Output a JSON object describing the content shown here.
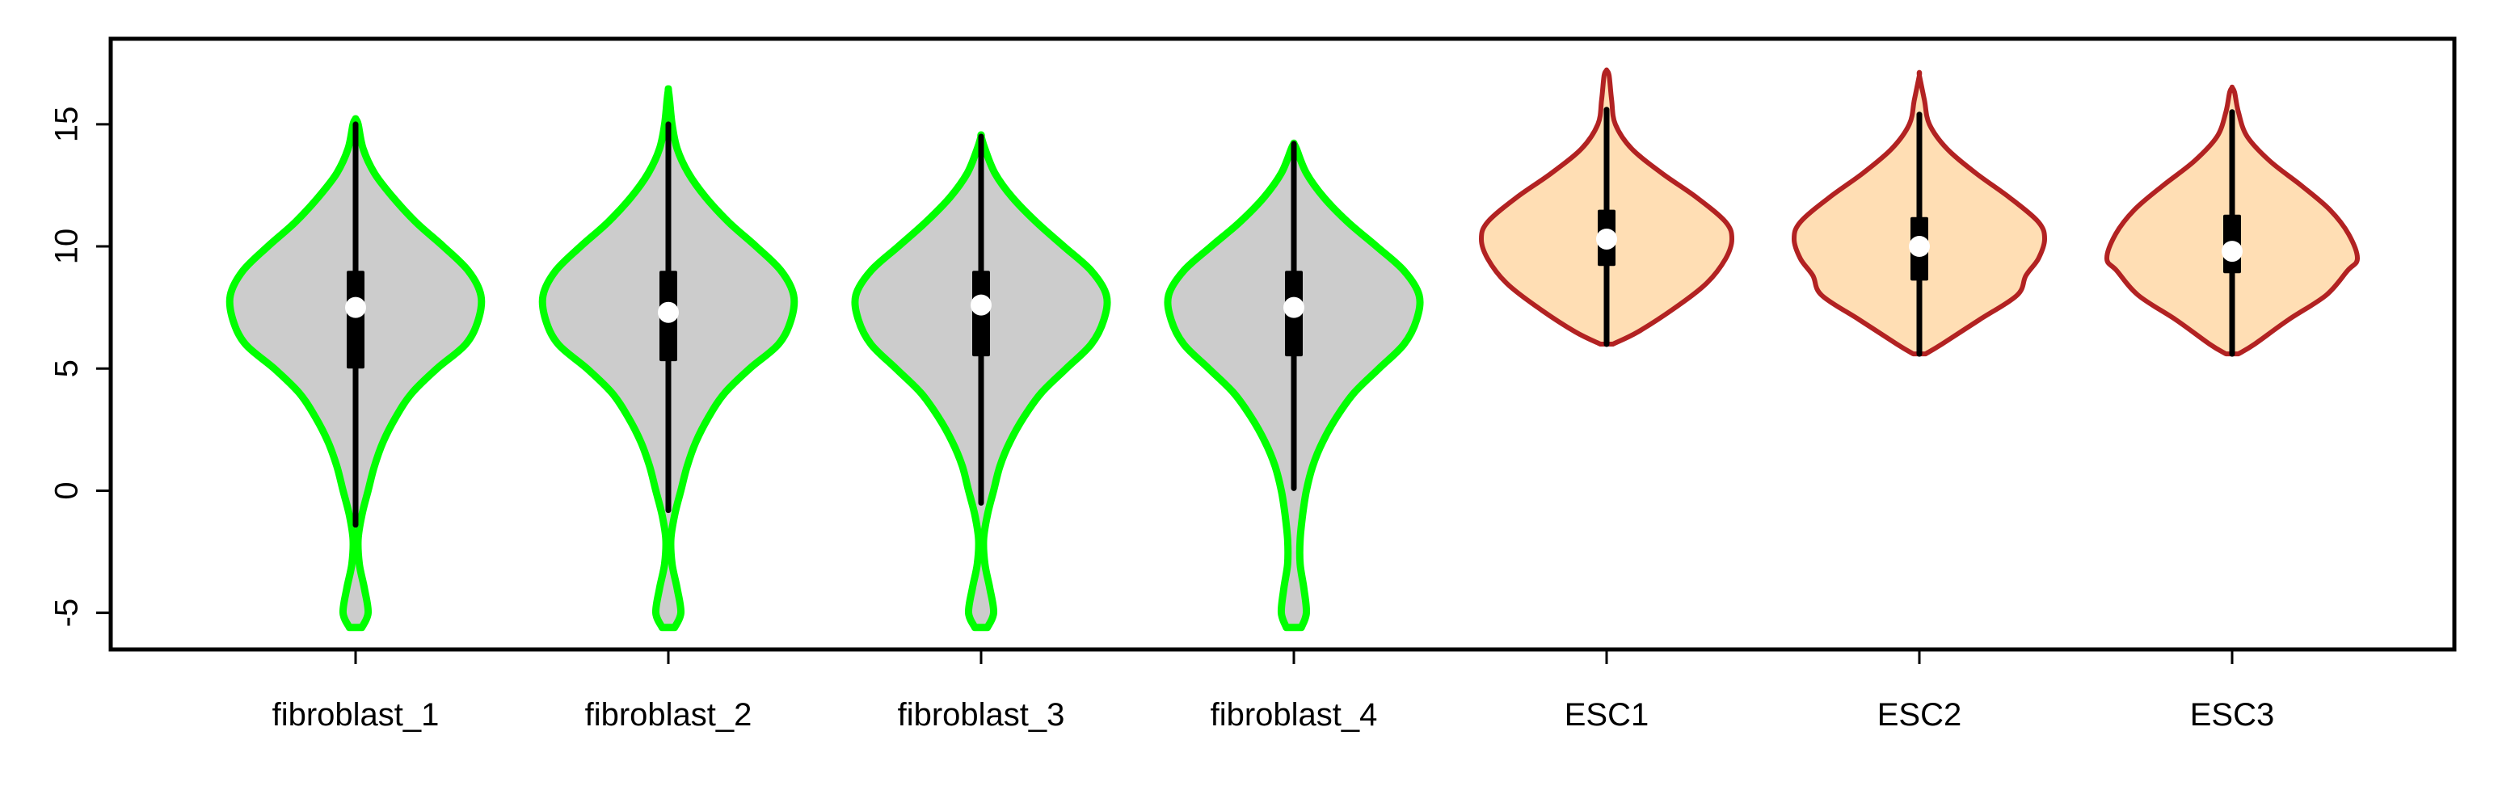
{
  "chart_data": {
    "type": "violin",
    "title": "",
    "xlabel": "",
    "ylabel": "",
    "ylim": [
      -6.5,
      18.5
    ],
    "yticks": [
      -5,
      0,
      5,
      10,
      15
    ],
    "ytick_labels": [
      "-5",
      "0",
      "5",
      "10",
      "15"
    ],
    "grid": false,
    "legend": "none",
    "categories": [
      "fibroblast_1",
      "fibroblast_2",
      "fibroblast_3",
      "fibroblast_4",
      "ESC1",
      "ESC2",
      "ESC3"
    ],
    "groups": {
      "fibroblast": {
        "fill": "#cccccc",
        "stroke": "#00ff00"
      },
      "ESC": {
        "fill": "#ffdeb4",
        "stroke": "#b22222"
      }
    },
    "violins": [
      {
        "name": "fibroblast_1",
        "group": "fibroblast",
        "min": -5.6,
        "max": 15.2,
        "q1": 5.0,
        "median": 7.5,
        "q3": 9.0,
        "whisker_low": -1.4,
        "whisker_high": 15.0,
        "profile": [
          [
            -5.6,
            0.05
          ],
          [
            -5.0,
            0.1
          ],
          [
            -4.0,
            0.07
          ],
          [
            -3.0,
            0.03
          ],
          [
            -2.0,
            0.02
          ],
          [
            -1.0,
            0.05
          ],
          [
            0.0,
            0.1
          ],
          [
            1.0,
            0.15
          ],
          [
            2.0,
            0.22
          ],
          [
            3.0,
            0.32
          ],
          [
            4.0,
            0.45
          ],
          [
            5.0,
            0.65
          ],
          [
            6.0,
            0.88
          ],
          [
            7.0,
            0.98
          ],
          [
            8.0,
            1.0
          ],
          [
            9.0,
            0.9
          ],
          [
            10.0,
            0.7
          ],
          [
            11.0,
            0.48
          ],
          [
            12.0,
            0.3
          ],
          [
            13.0,
            0.15
          ],
          [
            14.0,
            0.06
          ],
          [
            15.0,
            0.02
          ],
          [
            15.2,
            0.0
          ]
        ]
      },
      {
        "name": "fibroblast_2",
        "group": "fibroblast",
        "min": -5.6,
        "max": 16.4,
        "q1": 5.3,
        "median": 7.3,
        "q3": 9.0,
        "whisker_low": -0.8,
        "whisker_high": 15.0,
        "profile": [
          [
            -5.6,
            0.05
          ],
          [
            -5.0,
            0.1
          ],
          [
            -4.0,
            0.07
          ],
          [
            -3.0,
            0.03
          ],
          [
            -2.0,
            0.02
          ],
          [
            -1.0,
            0.05
          ],
          [
            0.0,
            0.1
          ],
          [
            1.0,
            0.15
          ],
          [
            2.0,
            0.22
          ],
          [
            3.0,
            0.32
          ],
          [
            4.0,
            0.45
          ],
          [
            5.0,
            0.65
          ],
          [
            6.0,
            0.88
          ],
          [
            7.0,
            0.98
          ],
          [
            8.0,
            1.0
          ],
          [
            9.0,
            0.9
          ],
          [
            10.0,
            0.7
          ],
          [
            11.0,
            0.48
          ],
          [
            12.0,
            0.3
          ],
          [
            13.0,
            0.16
          ],
          [
            14.0,
            0.07
          ],
          [
            15.0,
            0.03
          ],
          [
            16.0,
            0.01
          ],
          [
            16.4,
            0.0
          ]
        ]
      },
      {
        "name": "fibroblast_3",
        "group": "fibroblast",
        "min": -5.6,
        "max": 14.5,
        "q1": 5.5,
        "median": 7.6,
        "q3": 9.0,
        "whisker_low": -0.5,
        "whisker_high": 14.5,
        "profile": [
          [
            -5.6,
            0.05
          ],
          [
            -5.0,
            0.1
          ],
          [
            -4.0,
            0.07
          ],
          [
            -3.0,
            0.03
          ],
          [
            -2.0,
            0.02
          ],
          [
            -1.0,
            0.05
          ],
          [
            0.0,
            0.1
          ],
          [
            1.0,
            0.15
          ],
          [
            2.0,
            0.23
          ],
          [
            3.0,
            0.34
          ],
          [
            4.0,
            0.48
          ],
          [
            5.0,
            0.68
          ],
          [
            6.0,
            0.88
          ],
          [
            7.0,
            0.98
          ],
          [
            8.0,
            1.0
          ],
          [
            9.0,
            0.88
          ],
          [
            10.0,
            0.66
          ],
          [
            11.0,
            0.44
          ],
          [
            12.0,
            0.25
          ],
          [
            13.0,
            0.11
          ],
          [
            14.0,
            0.03
          ],
          [
            14.5,
            0.0
          ]
        ]
      },
      {
        "name": "fibroblast_4",
        "group": "fibroblast",
        "min": -5.6,
        "max": 14.2,
        "q1": 5.5,
        "median": 7.5,
        "q3": 9.0,
        "whisker_low": 0.1,
        "whisker_high": 14.2,
        "profile": [
          [
            -5.6,
            0.06
          ],
          [
            -5.0,
            0.1
          ],
          [
            -4.0,
            0.08
          ],
          [
            -3.0,
            0.05
          ],
          [
            -2.0,
            0.05
          ],
          [
            -1.0,
            0.07
          ],
          [
            0.0,
            0.1
          ],
          [
            1.0,
            0.15
          ],
          [
            2.0,
            0.23
          ],
          [
            3.0,
            0.34
          ],
          [
            4.0,
            0.48
          ],
          [
            5.0,
            0.68
          ],
          [
            6.0,
            0.88
          ],
          [
            7.0,
            0.98
          ],
          [
            8.0,
            1.0
          ],
          [
            9.0,
            0.88
          ],
          [
            10.0,
            0.66
          ],
          [
            11.0,
            0.43
          ],
          [
            12.0,
            0.24
          ],
          [
            13.0,
            0.1
          ],
          [
            14.0,
            0.02
          ],
          [
            14.2,
            0.0
          ]
        ]
      },
      {
        "name": "ESC1",
        "group": "ESC",
        "min": 6.0,
        "max": 17.2,
        "q1": 9.2,
        "median": 10.3,
        "q3": 11.5,
        "whisker_low": 6.0,
        "whisker_high": 15.6,
        "profile": [
          [
            6.0,
            0.05
          ],
          [
            6.5,
            0.25
          ],
          [
            7.5,
            0.55
          ],
          [
            8.5,
            0.8
          ],
          [
            9.5,
            0.95
          ],
          [
            10.3,
            1.0
          ],
          [
            11.0,
            0.95
          ],
          [
            12.0,
            0.72
          ],
          [
            13.0,
            0.44
          ],
          [
            14.0,
            0.2
          ],
          [
            15.0,
            0.07
          ],
          [
            16.0,
            0.04
          ],
          [
            17.0,
            0.02
          ],
          [
            17.2,
            0.0
          ]
        ]
      },
      {
        "name": "ESC2",
        "group": "ESC",
        "min": 5.6,
        "max": 17.0,
        "q1": 8.6,
        "median": 10.0,
        "q3": 11.2,
        "whisker_low": 5.6,
        "whisker_high": 15.4,
        "profile": [
          [
            5.6,
            0.05
          ],
          [
            6.0,
            0.18
          ],
          [
            7.0,
            0.48
          ],
          [
            8.0,
            0.78
          ],
          [
            8.8,
            0.85
          ],
          [
            9.5,
            0.95
          ],
          [
            10.3,
            1.0
          ],
          [
            11.0,
            0.95
          ],
          [
            12.0,
            0.72
          ],
          [
            13.0,
            0.45
          ],
          [
            14.0,
            0.22
          ],
          [
            15.0,
            0.08
          ],
          [
            16.0,
            0.04
          ],
          [
            17.0,
            0.0
          ]
        ]
      },
      {
        "name": "ESC3",
        "group": "ESC",
        "min": 5.6,
        "max": 16.5,
        "q1": 8.9,
        "median": 9.8,
        "q3": 11.3,
        "whisker_low": 5.6,
        "whisker_high": 15.5,
        "profile": [
          [
            5.6,
            0.05
          ],
          [
            6.0,
            0.18
          ],
          [
            7.0,
            0.45
          ],
          [
            8.0,
            0.75
          ],
          [
            9.0,
            0.92
          ],
          [
            9.5,
            1.0
          ],
          [
            10.5,
            0.93
          ],
          [
            11.5,
            0.78
          ],
          [
            12.5,
            0.55
          ],
          [
            13.5,
            0.3
          ],
          [
            14.5,
            0.12
          ],
          [
            15.5,
            0.05
          ],
          [
            16.3,
            0.02
          ],
          [
            16.5,
            0.0
          ]
        ]
      }
    ]
  }
}
